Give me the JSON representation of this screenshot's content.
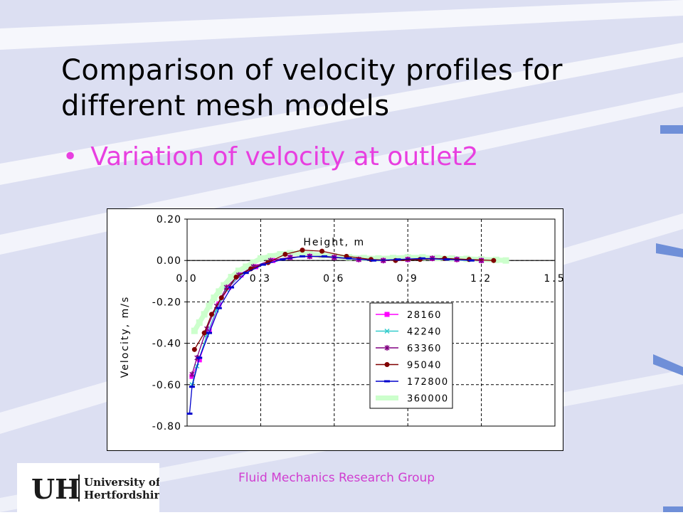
{
  "slide": {
    "title": "Comparison of velocity profiles for different mesh models",
    "bullet": "Variation of velocity at outlet2",
    "footer": "Fluid Mechanics Research Group"
  },
  "logo": {
    "mark": "UH",
    "line1": "University of",
    "line2": "Hertfordshire"
  },
  "colors": {
    "accent_text": "#e83fe0",
    "background": "#dcdff2",
    "stripe": "#ffffff"
  },
  "chart_data": {
    "type": "line",
    "xlabel": "Height, m",
    "ylabel": "Velocity, m/s",
    "xlim": [
      0,
      1.5
    ],
    "ylim": [
      -0.8,
      0.2
    ],
    "x_ticks": [
      "0.0",
      "0.3",
      "0.6",
      "0.9",
      "1.2",
      "1.5"
    ],
    "y_ticks": [
      "0.20",
      "0.00",
      "-0.20",
      "-0.40",
      "-0.60",
      "-0.80"
    ],
    "grid": "dashed",
    "legend": "lower-right",
    "series": [
      {
        "name": "28160",
        "color": "#ff00ff",
        "marker": "square",
        "x": [
          0.02,
          0.05,
          0.09,
          0.13,
          0.17,
          0.22,
          0.28,
          0.35,
          0.42,
          0.5,
          0.6,
          0.7,
          0.8,
          0.9,
          1.0,
          1.1,
          1.2
        ],
        "y": [
          -0.56,
          -0.48,
          -0.34,
          -0.21,
          -0.13,
          -0.07,
          -0.03,
          0.0,
          0.015,
          0.02,
          0.015,
          0.005,
          0.0,
          0.005,
          0.01,
          0.005,
          0.0
        ]
      },
      {
        "name": "42240",
        "color": "#33cccc",
        "marker": "x",
        "x": [
          0.02,
          0.04,
          0.08,
          0.12,
          0.16,
          0.21,
          0.27,
          0.34,
          0.42,
          0.5,
          0.6,
          0.7,
          0.8,
          0.9,
          1.0,
          1.1,
          1.2
        ],
        "y": [
          -0.6,
          -0.51,
          -0.36,
          -0.24,
          -0.14,
          -0.08,
          -0.03,
          0.0,
          0.015,
          0.02,
          0.015,
          0.005,
          0.0,
          0.005,
          0.01,
          0.005,
          0.0
        ]
      },
      {
        "name": "63360",
        "color": "#800080",
        "marker": "star",
        "x": [
          0.02,
          0.04,
          0.08,
          0.12,
          0.16,
          0.21,
          0.27,
          0.34,
          0.42,
          0.5,
          0.6,
          0.7,
          0.8,
          0.9,
          1.0,
          1.1,
          1.2
        ],
        "y": [
          -0.55,
          -0.47,
          -0.33,
          -0.22,
          -0.13,
          -0.07,
          -0.03,
          0.0,
          0.015,
          0.02,
          0.015,
          0.005,
          0.0,
          0.005,
          0.01,
          0.005,
          0.0
        ]
      },
      {
        "name": "95040",
        "color": "#800000",
        "marker": "circle",
        "x": [
          0.03,
          0.07,
          0.1,
          0.14,
          0.2,
          0.26,
          0.33,
          0.4,
          0.47,
          0.55,
          0.65,
          0.75,
          0.85,
          0.95,
          1.05,
          1.15,
          1.25
        ],
        "y": [
          -0.43,
          -0.35,
          -0.26,
          -0.18,
          -0.08,
          -0.04,
          -0.01,
          0.03,
          0.05,
          0.045,
          0.02,
          0.005,
          0.0,
          0.005,
          0.01,
          0.005,
          0.0
        ]
      },
      {
        "name": "172800",
        "color": "#0000cc",
        "marker": "dash",
        "x": [
          0.01,
          0.02,
          0.05,
          0.09,
          0.13,
          0.18,
          0.24,
          0.31,
          0.39,
          0.47,
          0.56,
          0.66,
          0.76,
          0.86,
          0.96,
          1.06,
          1.16
        ],
        "y": [
          -0.74,
          -0.61,
          -0.47,
          -0.35,
          -0.23,
          -0.13,
          -0.06,
          -0.02,
          0.005,
          0.02,
          0.02,
          0.01,
          0.0,
          0.005,
          0.01,
          0.005,
          0.0
        ]
      },
      {
        "name": "360000",
        "color": "#ccffcc",
        "marker": "square",
        "x": [
          0.03,
          0.05,
          0.07,
          0.09,
          0.11,
          0.13,
          0.15,
          0.18,
          0.21,
          0.24,
          0.27,
          0.3,
          0.34,
          0.38,
          0.42,
          0.46,
          0.5,
          0.55,
          0.6,
          0.66,
          0.72,
          0.78,
          0.84,
          0.9,
          0.96,
          1.02,
          1.08,
          1.14,
          1.2,
          1.26,
          1.3
        ],
        "y": [
          -0.34,
          -0.3,
          -0.26,
          -0.22,
          -0.18,
          -0.15,
          -0.12,
          -0.08,
          -0.05,
          -0.03,
          -0.01,
          0.01,
          0.02,
          0.03,
          0.035,
          0.035,
          0.03,
          0.025,
          0.02,
          0.015,
          0.012,
          0.01,
          0.012,
          0.015,
          0.015,
          0.012,
          0.01,
          0.008,
          0.005,
          0.003,
          0.0
        ]
      }
    ]
  }
}
